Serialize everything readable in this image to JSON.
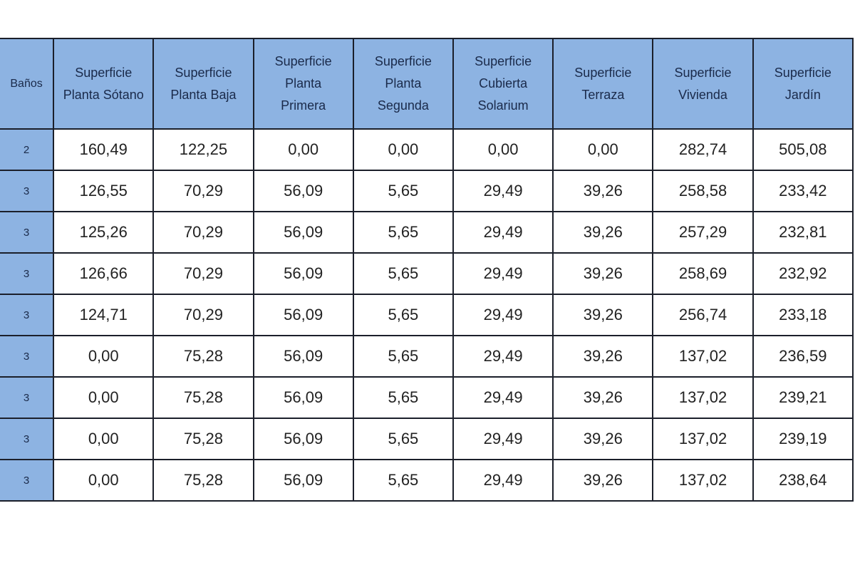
{
  "headers": [
    "Baños",
    "Superficie Planta Sótano",
    "Superficie Planta Baja",
    "Superficie Planta Primera",
    "Superficie Planta Segunda",
    "Superficie Cubierta Solarium",
    "Superficie Terraza",
    "Superficie Vivienda",
    "Superficie Jardín"
  ],
  "rows": [
    [
      "2",
      "160,49",
      "122,25",
      "0,00",
      "0,00",
      "0,00",
      "0,00",
      "282,74",
      "505,08"
    ],
    [
      "3",
      "126,55",
      "70,29",
      "56,09",
      "5,65",
      "29,49",
      "39,26",
      "258,58",
      "233,42"
    ],
    [
      "3",
      "125,26",
      "70,29",
      "56,09",
      "5,65",
      "29,49",
      "39,26",
      "257,29",
      "232,81"
    ],
    [
      "3",
      "126,66",
      "70,29",
      "56,09",
      "5,65",
      "29,49",
      "39,26",
      "258,69",
      "232,92"
    ],
    [
      "3",
      "124,71",
      "70,29",
      "56,09",
      "5,65",
      "29,49",
      "39,26",
      "256,74",
      "233,18"
    ],
    [
      "3",
      "0,00",
      "75,28",
      "56,09",
      "5,65",
      "29,49",
      "39,26",
      "137,02",
      "236,59"
    ],
    [
      "3",
      "0,00",
      "75,28",
      "56,09",
      "5,65",
      "29,49",
      "39,26",
      "137,02",
      "239,21"
    ],
    [
      "3",
      "0,00",
      "75,28",
      "56,09",
      "5,65",
      "29,49",
      "39,26",
      "137,02",
      "239,19"
    ],
    [
      "3",
      "0,00",
      "75,28",
      "56,09",
      "5,65",
      "29,49",
      "39,26",
      "137,02",
      "238,64"
    ]
  ],
  "colors": {
    "header_bg": "#8db3e2",
    "border": "#1b1f2a"
  }
}
